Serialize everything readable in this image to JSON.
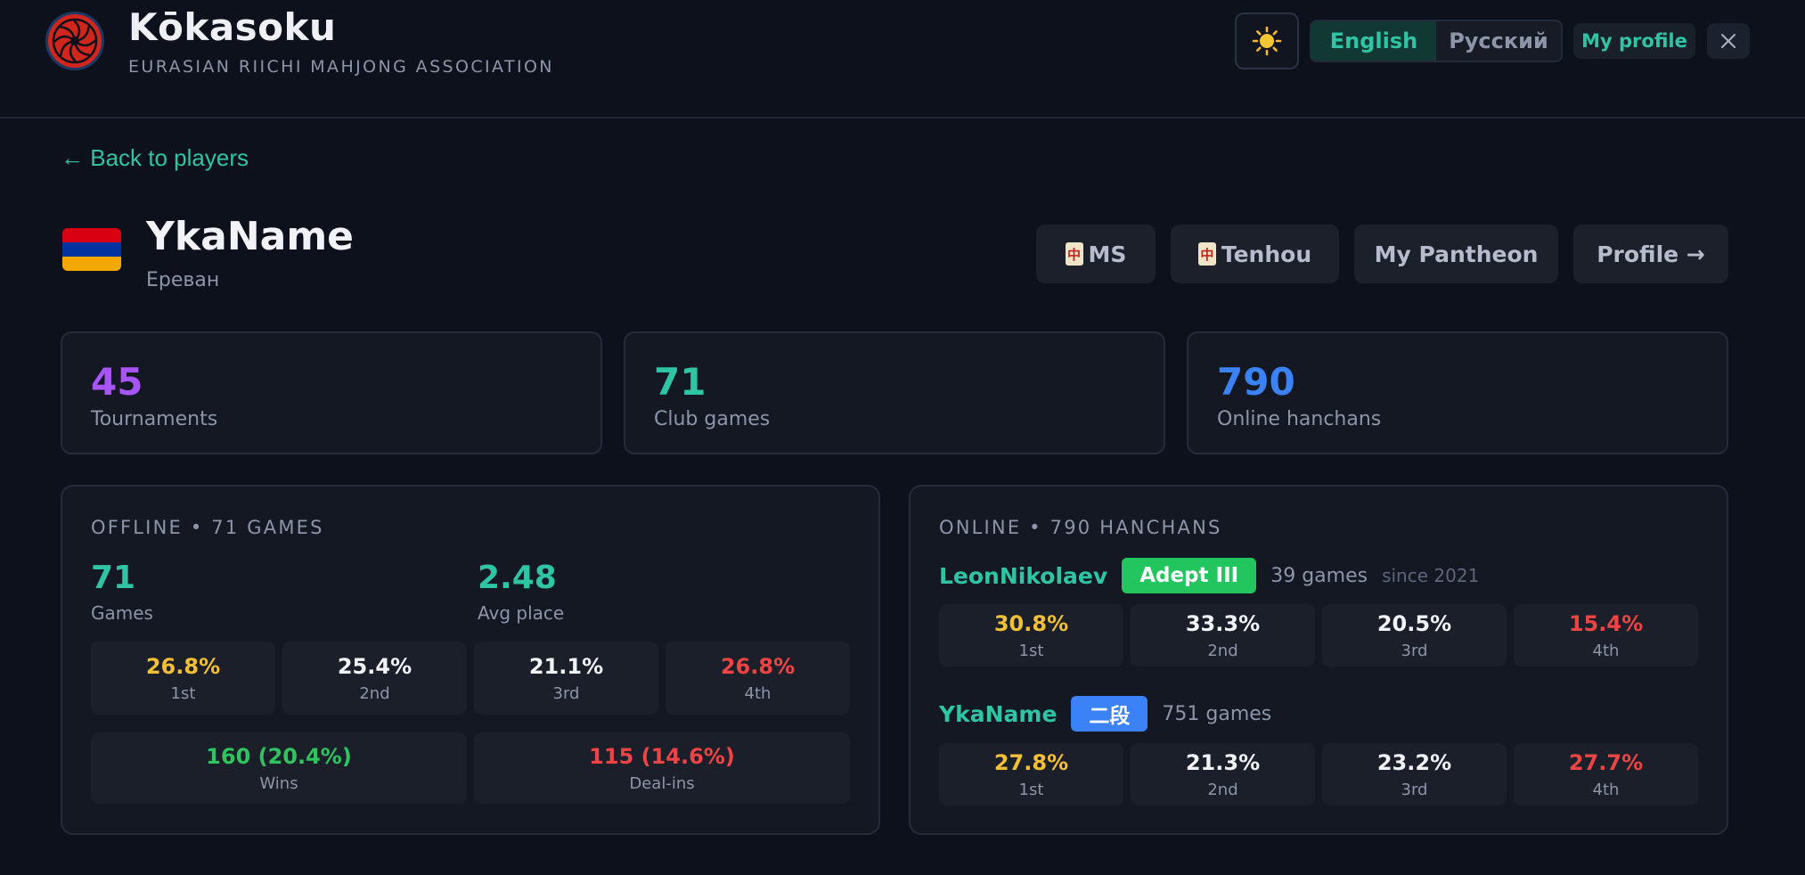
{
  "header": {
    "title": "Kōkasoku",
    "subtitle": "EURASIAN RIICHI MAHJONG ASSOCIATION",
    "theme_icon": "sun-icon",
    "languages": [
      {
        "label": "English",
        "active": true
      },
      {
        "label": "Русский",
        "active": false
      }
    ],
    "my_profile_label": "My profile",
    "close_icon": "close-icon"
  },
  "back_link": "← Back to players",
  "player": {
    "name": "YkaName",
    "city": "Ереван",
    "flag": "armenia-flag",
    "links": [
      {
        "label": "MS",
        "icon": "mahjong-tile-icon"
      },
      {
        "label": "Tenhou",
        "icon": "mahjong-tile-icon"
      },
      {
        "label": "My Pantheon"
      },
      {
        "label": "Profile →"
      }
    ]
  },
  "summary": [
    {
      "value": "45",
      "label": "Tournaments",
      "color": "#a855f7"
    },
    {
      "value": "71",
      "label": "Club games",
      "color": "#2ec4a4"
    },
    {
      "value": "790",
      "label": "Online hanchans",
      "color": "#3b82f6"
    }
  ],
  "offline": {
    "title": "OFFLINE • 71 GAMES",
    "games_value": "71",
    "games_label": "Games",
    "avg_value": "2.48",
    "avg_label": "Avg place",
    "places": [
      {
        "value": "26.8%",
        "label": "1st"
      },
      {
        "value": "25.4%",
        "label": "2nd"
      },
      {
        "value": "21.1%",
        "label": "3rd"
      },
      {
        "value": "26.8%",
        "label": "4th"
      }
    ],
    "wins": {
      "value": "160 (20.4%)",
      "label": "Wins"
    },
    "dealins": {
      "value": "115 (14.6%)",
      "label": "Deal-ins"
    }
  },
  "online": {
    "title": "ONLINE • 790 HANCHANS",
    "accounts": [
      {
        "name": "LeonNikolaev",
        "rank": "Adept III",
        "rank_color": "#22c55e",
        "games": "39 games",
        "since": "since 2021",
        "places": [
          {
            "value": "30.8%",
            "label": "1st"
          },
          {
            "value": "33.3%",
            "label": "2nd"
          },
          {
            "value": "20.5%",
            "label": "3rd"
          },
          {
            "value": "15.4%",
            "label": "4th"
          }
        ]
      },
      {
        "name": "YkaName",
        "rank": "二段",
        "rank_color": "#3b82f6",
        "games": "751 games",
        "places": [
          {
            "value": "27.8%",
            "label": "1st"
          },
          {
            "value": "21.3%",
            "label": "2nd"
          },
          {
            "value": "23.2%",
            "label": "3rd"
          },
          {
            "value": "27.7%",
            "label": "4th"
          }
        ]
      }
    ]
  }
}
